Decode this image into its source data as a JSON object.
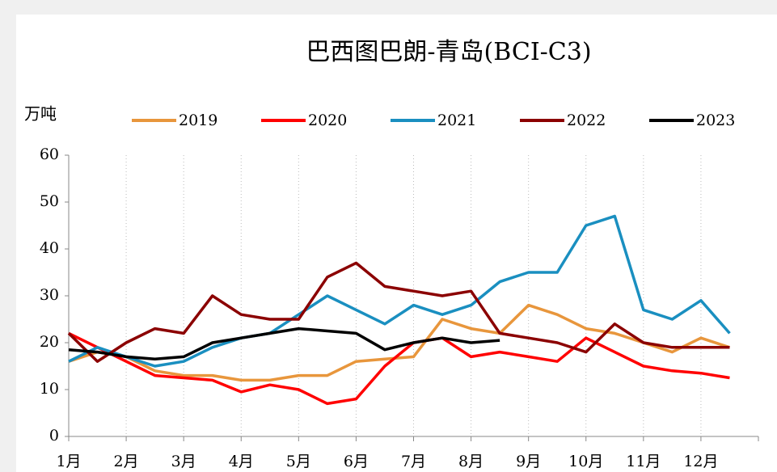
{
  "chart_data": {
    "type": "line",
    "title": "巴西图巴朗-青岛(BCI-C3)",
    "y_label": "万吨",
    "categories": [
      "1月",
      null,
      "2月",
      null,
      "3月",
      null,
      "4月",
      null,
      "5月",
      null,
      "6月",
      null,
      "7月",
      null,
      "8月",
      null,
      "9月",
      null,
      "10月",
      null,
      "11月",
      null,
      "12月",
      null
    ],
    "series": [
      {
        "name": "2019",
        "color": "#e8963c",
        "values": [
          16,
          18,
          17,
          14,
          13,
          13,
          12,
          12,
          13,
          13,
          16,
          16.5,
          17,
          25,
          23,
          22,
          28,
          26,
          23,
          22,
          20,
          18,
          21,
          19
        ]
      },
      {
        "name": "2020",
        "color": "#ff0000",
        "values": [
          22,
          19,
          16,
          13,
          12.5,
          12,
          9.5,
          11,
          10,
          7,
          8,
          15,
          20,
          21,
          17,
          18,
          17,
          16,
          21,
          18,
          15,
          14,
          13.5,
          12.5
        ]
      },
      {
        "name": "2021",
        "color": "#1a8fc0",
        "values": [
          16,
          19,
          17,
          15,
          16,
          19,
          21,
          22,
          26,
          30,
          27,
          24,
          28,
          26,
          28,
          33,
          35,
          35,
          45,
          47,
          27,
          25,
          29,
          22
        ]
      },
      {
        "name": "2022",
        "color": "#8b0000",
        "values": [
          22,
          16,
          20,
          23,
          22,
          30,
          26,
          25,
          25,
          34,
          37,
          32,
          31,
          30,
          31,
          22,
          21,
          20,
          18,
          24,
          20,
          19,
          19,
          19
        ]
      },
      {
        "name": "2023",
        "color": "#000000",
        "values": [
          18.5,
          18,
          17,
          16.5,
          17,
          20,
          21,
          22,
          23,
          22.5,
          22,
          18.5,
          20,
          21,
          20,
          20.5,
          null,
          null,
          null,
          null,
          null,
          null,
          null,
          null
        ]
      }
    ],
    "ylim": [
      0,
      60
    ],
    "yticks": [
      0,
      10,
      20,
      30,
      40,
      50,
      60
    ],
    "grid": true
  }
}
